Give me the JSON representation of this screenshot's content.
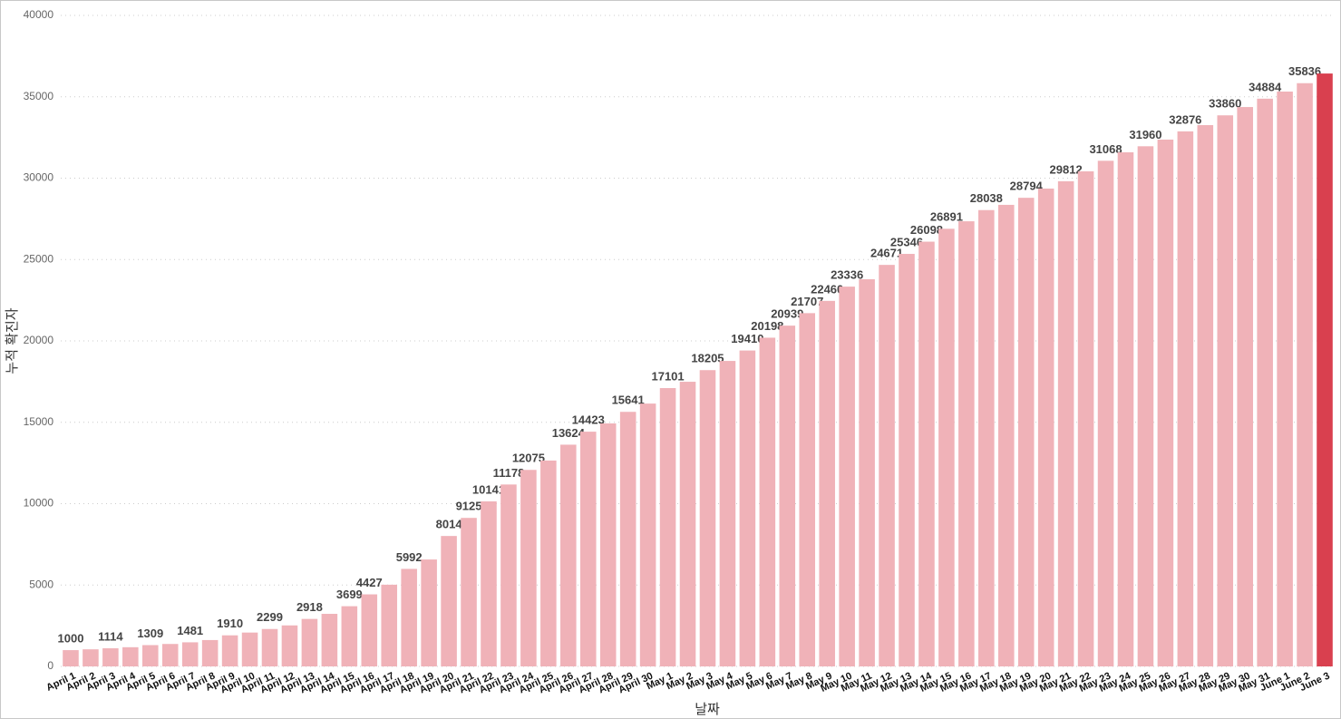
{
  "chart_data": {
    "type": "bar",
    "x_label": "날짜",
    "y_label": "누적 확진자",
    "categories": [
      "April 1",
      "April 2",
      "April 3",
      "April 4",
      "April 5",
      "April 6",
      "April 7",
      "April 8",
      "April 9",
      "April 10",
      "April 11",
      "April 12",
      "April 13",
      "April 14",
      "April 15",
      "April 16",
      "April 17",
      "April 18",
      "April 19",
      "April 20",
      "April 21",
      "April 22",
      "April 23",
      "April 24",
      "April 25",
      "April 26",
      "April 27",
      "April 28",
      "April 29",
      "April 30",
      "May 1",
      "May 2",
      "May 3",
      "May 4",
      "May 5",
      "May 6",
      "May 7",
      "May 8",
      "May 9",
      "May 10",
      "May 11",
      "May 12",
      "May 13",
      "May 14",
      "May 15",
      "May 16",
      "May 17",
      "May 18",
      "May 19",
      "May 20",
      "May 21",
      "May 22",
      "May 23",
      "May 24",
      "May 25",
      "May 26",
      "May 27",
      "May 28",
      "May 29",
      "May 30",
      "May 31",
      "June 1",
      "June 2",
      "June 3"
    ],
    "values": [
      1000,
      1050,
      1114,
      1180,
      1309,
      1380,
      1481,
      1620,
      1910,
      2080,
      2299,
      2520,
      2918,
      3230,
      3699,
      4427,
      5020,
      5992,
      6570,
      8014,
      9125,
      10141,
      11178,
      12075,
      12650,
      13624,
      14423,
      14930,
      15641,
      16150,
      17101,
      17490,
      18205,
      18770,
      19410,
      20198,
      20939,
      21707,
      22460,
      23336,
      23790,
      24671,
      25346,
      26098,
      26891,
      27350,
      28038,
      28360,
      28794,
      29360,
      29812,
      30420,
      31068,
      31590,
      31960,
      32370,
      32876,
      33260,
      33860,
      34370,
      34884,
      35320,
      35836,
      36430
    ],
    "value_labels": [
      1000,
      null,
      1114,
      null,
      1309,
      null,
      1481,
      null,
      1910,
      null,
      2299,
      null,
      2918,
      null,
      3699,
      4427,
      null,
      5992,
      null,
      8014,
      9125,
      10141,
      11178,
      12075,
      null,
      13624,
      14423,
      null,
      15641,
      null,
      17101,
      null,
      18205,
      null,
      19410,
      20198,
      20939,
      21707,
      22460,
      23336,
      null,
      24671,
      25346,
      26098,
      26891,
      null,
      28038,
      null,
      28794,
      null,
      29812,
      null,
      31068,
      null,
      31960,
      null,
      32876,
      null,
      33860,
      null,
      34884,
      null,
      35836,
      null
    ],
    "colors": [
      "#f0b2b8",
      "#f0b2b8",
      "#f0b2b8",
      "#f0b2b8",
      "#f0b2b8",
      "#f0b2b8",
      "#f0b2b8",
      "#f0b2b8",
      "#f0b2b8",
      "#f0b2b8",
      "#f0b2b8",
      "#f0b2b8",
      "#f0b2b8",
      "#f0b2b8",
      "#f0b2b8",
      "#f0b2b8",
      "#f0b2b8",
      "#f0b2b8",
      "#f0b2b8",
      "#f0b2b8",
      "#f0b2b8",
      "#f0b2b8",
      "#f0b2b8",
      "#f0b2b8",
      "#f0b2b8",
      "#f0b2b8",
      "#f0b2b8",
      "#f0b2b8",
      "#f0b2b8",
      "#f0b2b8",
      "#f0b2b8",
      "#f0b2b8",
      "#f0b2b8",
      "#f0b2b8",
      "#f0b2b8",
      "#f0b2b8",
      "#f0b2b8",
      "#f0b2b8",
      "#f0b2b8",
      "#f0b2b8",
      "#f0b2b8",
      "#f0b2b8",
      "#f0b2b8",
      "#f0b2b8",
      "#f0b2b8",
      "#f0b2b8",
      "#f0b2b8",
      "#f0b2b8",
      "#f0b2b8",
      "#f0b2b8",
      "#f0b2b8",
      "#f0b2b8",
      "#f0b2b8",
      "#f0b2b8",
      "#f0b2b8",
      "#f0b2b8",
      "#f0b2b8",
      "#f0b2b8",
      "#f0b2b8",
      "#f0b2b8",
      "#f0b2b8",
      "#f0b2b8",
      "#f0b2b8",
      "#d9404f"
    ],
    "ylim": [
      0,
      40000
    ],
    "yticks": [
      0,
      5000,
      10000,
      15000,
      20000,
      25000,
      30000,
      35000,
      40000
    ],
    "grid": true
  }
}
